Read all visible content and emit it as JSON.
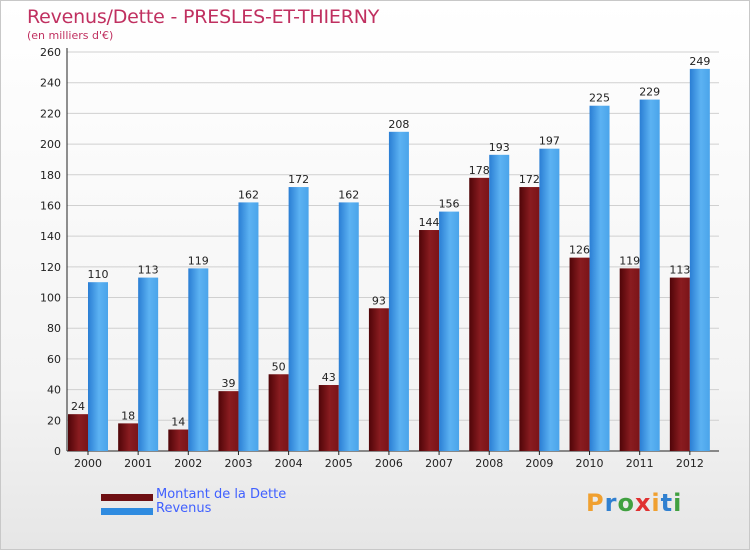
{
  "title": "Revenus/Dette - PRESLES-ET-THIERNY",
  "subtitle": "(en milliers d'€)",
  "brand": {
    "text": "Proxiti",
    "letters": [
      "P",
      "r",
      "o",
      "x",
      "i",
      "t",
      "i"
    ],
    "colors": [
      "#f0a030",
      "#3080d0",
      "#40a040",
      "#e03030",
      "#f0a030",
      "#3080d0",
      "#40a040"
    ]
  },
  "colors": {
    "dette": "#6e0f12",
    "revenus": "#2f8be0",
    "grid": "#d0d0d0",
    "axis": "#222222",
    "label": "#222222"
  },
  "chart_data": {
    "type": "bar",
    "title": "Revenus/Dette - PRESLES-ET-THIERNY",
    "ylabel": "(en milliers d'€)",
    "xlabel": "",
    "ylim": [
      0,
      260
    ],
    "yticks": [
      0,
      20,
      40,
      60,
      80,
      100,
      120,
      140,
      160,
      180,
      200,
      220,
      240,
      260
    ],
    "grid": true,
    "legend_position": "bottom-left",
    "categories": [
      "2000",
      "2001",
      "2002",
      "2003",
      "2004",
      "2005",
      "2006",
      "2007",
      "2008",
      "2009",
      "2010",
      "2011",
      "2012"
    ],
    "series": [
      {
        "name": "Montant de la Dette",
        "values": [
          24,
          18,
          14,
          39,
          50,
          43,
          93,
          144,
          178,
          172,
          126,
          119,
          113
        ]
      },
      {
        "name": "Revenus",
        "values": [
          110,
          113,
          119,
          162,
          172,
          162,
          208,
          156,
          193,
          197,
          225,
          229,
          249
        ]
      }
    ]
  }
}
